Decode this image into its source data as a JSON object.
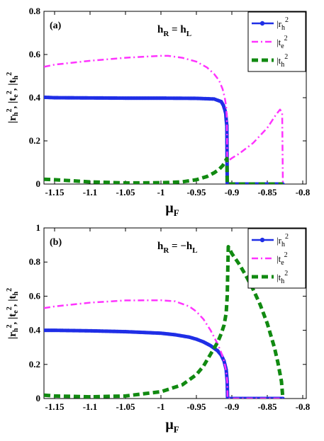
{
  "chart_data": [
    {
      "type": "line",
      "panel_label": "(a)",
      "annotation": {
        "base": "h",
        "left_sub": "R",
        "mid": " = h",
        "right_sub": "L"
      },
      "xlabel": {
        "base": "μ",
        "sub": "F"
      },
      "ylabel": "|r_h|^2, |t_e|^2, |t_h|^2",
      "xlim": [
        -1.165,
        -0.795
      ],
      "ylim": [
        0,
        0.8
      ],
      "xticks": [
        -1.15,
        -1.1,
        -1.05,
        -1,
        -0.95,
        -0.9,
        -0.85,
        -0.8
      ],
      "xtick_labels": [
        "-1.15",
        "-1.1",
        "-1.05",
        "-1",
        "-0.95",
        "-0.9",
        "-0.85",
        "-0.8"
      ],
      "yticks": [
        0,
        0.2,
        0.4,
        0.6,
        0.8
      ],
      "ytick_labels": [
        "0",
        "0.2",
        "0.4",
        "0.6",
        "0.8"
      ],
      "grid": false,
      "legend_position": "top-right",
      "series": [
        {
          "name": "|r_h|^2",
          "legend": {
            "base": "|r",
            "sub": "h",
            "sup": "2"
          },
          "color": "#1f2ee6",
          "style": "solid-dots",
          "x": [
            -1.165,
            -1.15,
            -1.1,
            -1.05,
            -1.0,
            -0.95,
            -0.925,
            -0.915,
            -0.912,
            -0.91,
            -0.9085,
            -0.908,
            -0.907,
            -0.9065,
            -0.9,
            -0.88,
            -0.85,
            -0.828
          ],
          "y": [
            0.402,
            0.4,
            0.399,
            0.398,
            0.398,
            0.397,
            0.394,
            0.382,
            0.365,
            0.345,
            0.325,
            0.3,
            0.27,
            0.0,
            0.0,
            0.0,
            0.0,
            0.0
          ]
        },
        {
          "name": "|t_e|^2",
          "legend": {
            "base": "|t",
            "sub": "e",
            "sup": "2"
          },
          "color": "#ff33ff",
          "style": "dash-dot",
          "x": [
            -1.165,
            -1.15,
            -1.1,
            -1.05,
            -1.0,
            -0.99,
            -0.97,
            -0.95,
            -0.935,
            -0.925,
            -0.918,
            -0.913,
            -0.91,
            -0.908,
            -0.907,
            -0.9065,
            -0.9,
            -0.89,
            -0.87,
            -0.85,
            -0.838,
            -0.832,
            -0.829,
            -0.828
          ],
          "y": [
            0.543,
            0.553,
            0.571,
            0.585,
            0.594,
            0.594,
            0.585,
            0.567,
            0.54,
            0.51,
            0.48,
            0.44,
            0.4,
            0.36,
            0.3,
            0.103,
            0.12,
            0.14,
            0.19,
            0.26,
            0.32,
            0.345,
            0.33,
            0.0
          ]
        },
        {
          "name": "|t_h|^2",
          "legend": {
            "base": "|t",
            "sub": "h",
            "sup": "2"
          },
          "color": "#118a11",
          "style": "thick-dash",
          "x": [
            -1.165,
            -1.15,
            -1.1,
            -1.05,
            -1.0,
            -0.97,
            -0.95,
            -0.935,
            -0.925,
            -0.918,
            -0.913,
            -0.91,
            -0.908,
            -0.907,
            -0.9065,
            -0.9,
            -0.85,
            -0.828
          ],
          "y": [
            0.022,
            0.02,
            0.01,
            0.005,
            0.006,
            0.01,
            0.02,
            0.035,
            0.052,
            0.068,
            0.085,
            0.1,
            0.113,
            0.118,
            0.0,
            0.0,
            0.0,
            0.0
          ]
        }
      ]
    },
    {
      "type": "line",
      "panel_label": "(b)",
      "annotation": {
        "base": "h",
        "left_sub": "R",
        "mid": " = −h",
        "right_sub": "L"
      },
      "xlabel": {
        "base": "μ",
        "sub": "F"
      },
      "ylabel": "|r_h|^2, |t_e|^2, |t_h|^2",
      "xlim": [
        -1.165,
        -0.795
      ],
      "ylim": [
        0,
        1
      ],
      "xticks": [
        -1.15,
        -1.1,
        -1.05,
        -1,
        -0.95,
        -0.9,
        -0.85,
        -0.8
      ],
      "xtick_labels": [
        "-1.15",
        "-1.1",
        "-1.05",
        "-1",
        "-0.95",
        "-0.9",
        "-0.85",
        "-0.8"
      ],
      "yticks": [
        0,
        0.2,
        0.4,
        0.6,
        0.8,
        1
      ],
      "ytick_labels": [
        "0",
        "0.2",
        "0.4",
        "0.6",
        "0.8",
        "1"
      ],
      "grid": false,
      "legend_position": "top-right",
      "series": [
        {
          "name": "|r_h|^2",
          "legend": {
            "base": "|r",
            "sub": "h",
            "sup": "2"
          },
          "color": "#1f2ee6",
          "style": "solid-dots",
          "x": [
            -1.165,
            -1.15,
            -1.1,
            -1.05,
            -1.0,
            -0.98,
            -0.96,
            -0.95,
            -0.94,
            -0.93,
            -0.92,
            -0.915,
            -0.911,
            -0.908,
            -0.9065,
            -0.906,
            -0.9,
            -0.85,
            -0.828
          ],
          "y": [
            0.4,
            0.4,
            0.397,
            0.392,
            0.383,
            0.374,
            0.36,
            0.348,
            0.332,
            0.31,
            0.28,
            0.255,
            0.22,
            0.17,
            0.1,
            0.0,
            0.0,
            0.0,
            0.0
          ]
        },
        {
          "name": "|t_e|^2",
          "legend": {
            "base": "|t",
            "sub": "e",
            "sup": "2"
          },
          "color": "#ff33ff",
          "style": "dash-dot",
          "x": [
            -1.165,
            -1.15,
            -1.1,
            -1.05,
            -1.0,
            -0.98,
            -0.96,
            -0.95,
            -0.94,
            -0.93,
            -0.92,
            -0.915,
            -0.911,
            -0.908,
            -0.9065,
            -0.906,
            -0.9,
            -0.85,
            -0.828
          ],
          "y": [
            0.53,
            0.54,
            0.562,
            0.575,
            0.576,
            0.57,
            0.54,
            0.51,
            0.465,
            0.4,
            0.32,
            0.27,
            0.22,
            0.16,
            0.1,
            0.0,
            0.0,
            0.0,
            0.0
          ]
        },
        {
          "name": "|t_h|^2",
          "legend": {
            "base": "|t",
            "sub": "h",
            "sup": "2"
          },
          "color": "#118a11",
          "style": "thick-dash",
          "x": [
            -1.165,
            -1.15,
            -1.1,
            -1.05,
            -1.0,
            -0.97,
            -0.95,
            -0.94,
            -0.93,
            -0.92,
            -0.915,
            -0.911,
            -0.908,
            -0.9065,
            -0.905,
            -0.9,
            -0.89,
            -0.88,
            -0.87,
            -0.86,
            -0.85,
            -0.84,
            -0.835,
            -0.83,
            -0.828
          ],
          "y": [
            0.02,
            0.015,
            0.01,
            0.015,
            0.04,
            0.08,
            0.14,
            0.19,
            0.26,
            0.33,
            0.38,
            0.43,
            0.5,
            0.6,
            0.89,
            0.85,
            0.79,
            0.72,
            0.64,
            0.55,
            0.44,
            0.3,
            0.21,
            0.1,
            0.0
          ]
        }
      ]
    }
  ]
}
